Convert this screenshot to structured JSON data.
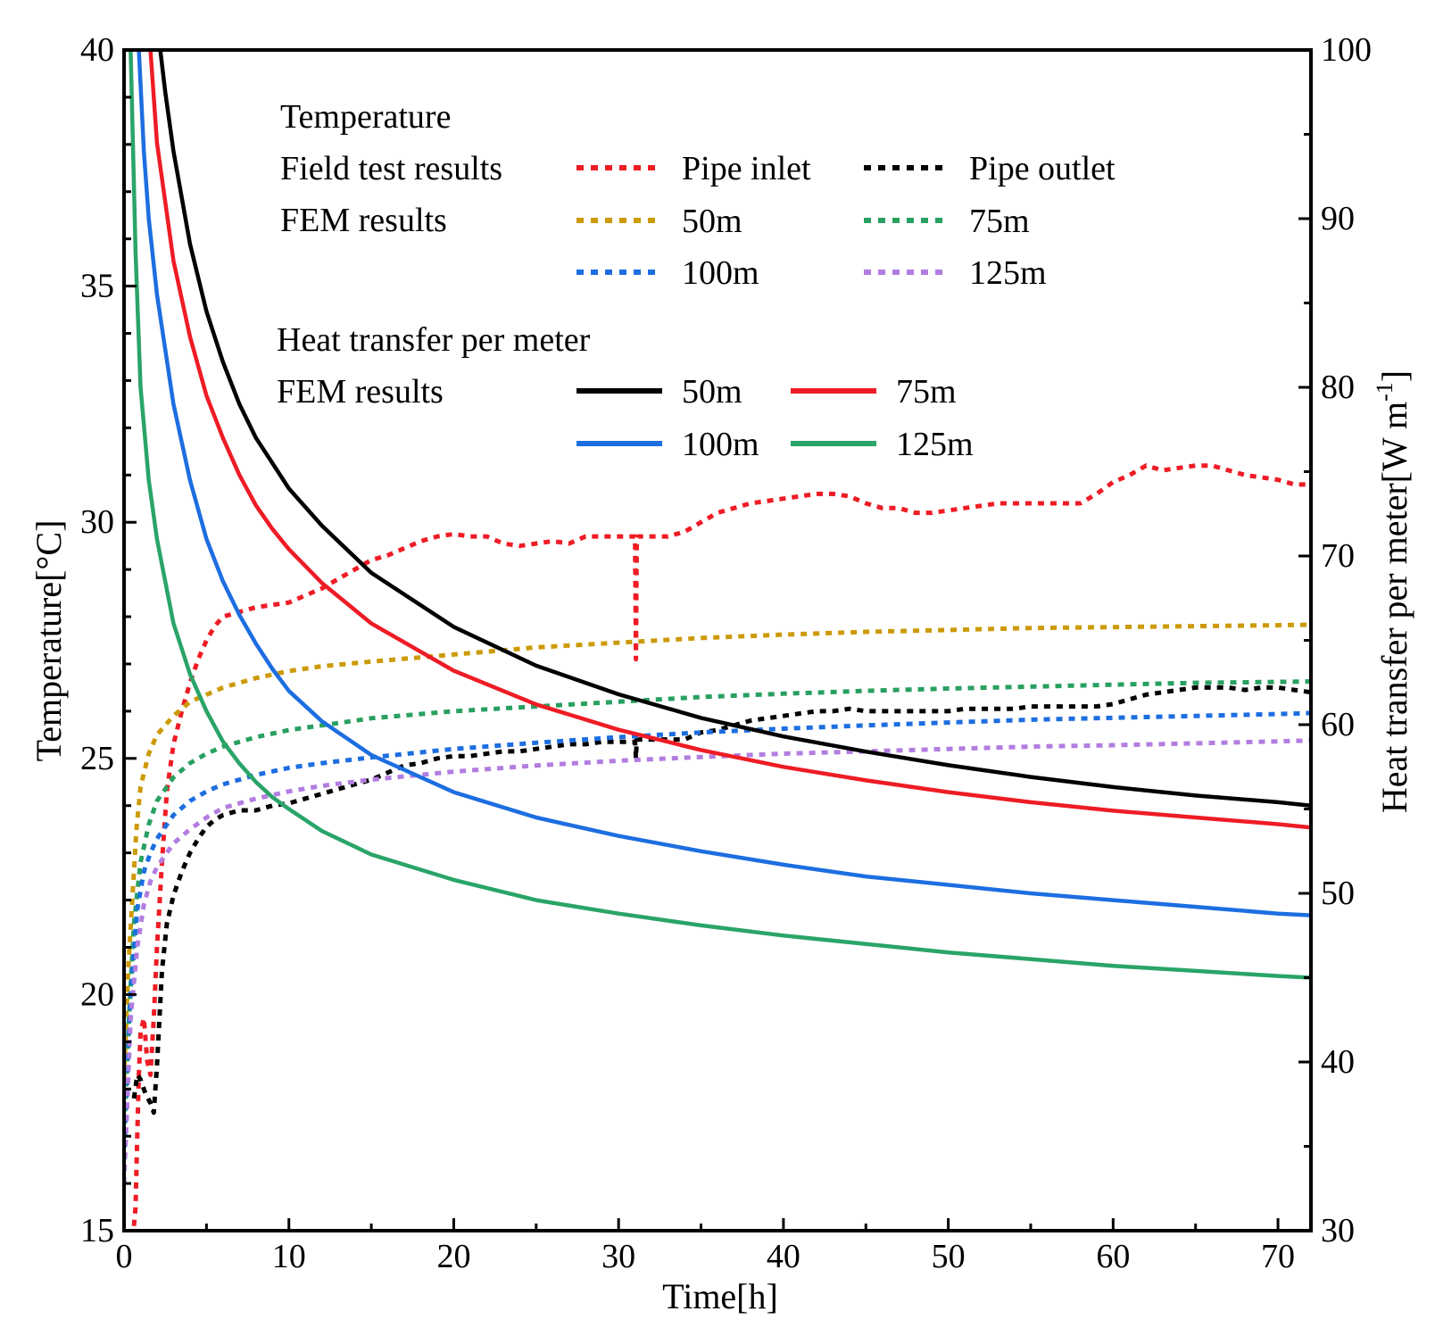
{
  "chart_data": {
    "type": "line",
    "xlabel": "Time[h]",
    "ylabel_left": "Temperature[°C]",
    "ylabel_right_main": "Heat transfer per meter[W m",
    "ylabel_right_sup": "-1",
    "ylabel_right_close": "]",
    "xlim": [
      0,
      72
    ],
    "ylim_left": [
      15,
      40
    ],
    "ylim_right": [
      30,
      100
    ],
    "x_ticks": [
      "0",
      "10",
      "20",
      "30",
      "40",
      "50",
      "60",
      "70"
    ],
    "y_left_ticks": [
      "15",
      "20",
      "25",
      "30",
      "35",
      "40"
    ],
    "y_right_ticks": [
      "30",
      "40",
      "50",
      "60",
      "70",
      "80",
      "90",
      "100"
    ],
    "legend": {
      "temperature_heading": "Temperature",
      "field_label": "Field test results",
      "fem_label_temp": "FEM results",
      "heat_heading": "Heat transfer per meter",
      "fem_label_heat": "FEM results",
      "entries_temp": [
        "Pipe inlet",
        "Pipe outlet",
        "50m",
        "75m",
        "100m",
        "125m"
      ],
      "entries_heat": [
        "50m",
        "75m",
        "100m",
        "125m"
      ]
    },
    "series": [
      {
        "name": "Pipe inlet",
        "axis": "left",
        "style": "dotted",
        "color": "#ee1c25",
        "x": [
          0.6,
          0.7,
          0.8,
          0.9,
          1.0,
          1.2,
          1.4,
          1.6,
          1.8,
          2.0,
          2.3,
          2.6,
          3,
          3.5,
          4,
          4.5,
          5,
          5.5,
          6,
          7,
          8,
          9,
          10,
          11,
          12,
          13,
          14,
          15,
          16,
          17,
          18,
          19,
          20,
          21,
          22,
          23,
          24,
          25,
          26,
          27,
          28,
          29,
          30,
          31,
          31.05,
          31.1,
          31.2,
          32,
          33,
          34,
          35,
          36,
          37,
          38,
          39,
          40,
          41,
          42,
          43,
          44,
          45,
          46,
          47,
          48,
          49,
          50,
          51,
          52,
          53,
          54,
          55,
          56,
          57,
          58,
          59,
          60,
          61,
          62,
          63,
          64,
          65,
          66,
          67,
          68,
          69,
          70,
          71,
          72
        ],
        "y": [
          15.1,
          15.5,
          17.0,
          18.3,
          19.2,
          19.5,
          18.6,
          18.3,
          19.5,
          21.0,
          22.8,
          24.3,
          25.3,
          26.0,
          26.6,
          27.1,
          27.5,
          27.8,
          28.0,
          28.1,
          28.2,
          28.25,
          28.3,
          28.45,
          28.6,
          28.8,
          29.0,
          29.2,
          29.3,
          29.45,
          29.6,
          29.7,
          29.75,
          29.7,
          29.7,
          29.55,
          29.5,
          29.55,
          29.6,
          29.55,
          29.7,
          29.7,
          29.7,
          29.7,
          27.1,
          29.5,
          29.7,
          29.7,
          29.7,
          29.8,
          30.0,
          30.2,
          30.3,
          30.4,
          30.45,
          30.5,
          30.55,
          30.6,
          30.6,
          30.55,
          30.4,
          30.3,
          30.3,
          30.2,
          30.2,
          30.25,
          30.3,
          30.35,
          30.4,
          30.4,
          30.4,
          30.4,
          30.4,
          30.4,
          30.6,
          30.85,
          31.0,
          31.2,
          31.1,
          31.15,
          31.2,
          31.2,
          31.1,
          31.0,
          30.95,
          30.9,
          30.8,
          30.8
        ]
      },
      {
        "name": "Pipe outlet",
        "axis": "left",
        "style": "dotted",
        "color": "#000000",
        "x": [
          0.6,
          0.8,
          1.0,
          1.3,
          1.6,
          1.8,
          2.0,
          2.3,
          2.6,
          3,
          3.5,
          4,
          4.5,
          5,
          5.5,
          6,
          7,
          8,
          9,
          10,
          11,
          12,
          13,
          14,
          15,
          16,
          17,
          18,
          19,
          20,
          21,
          22,
          23,
          24,
          25,
          26,
          27,
          28,
          29,
          30,
          31,
          31.05,
          31.1,
          31.2,
          32,
          33,
          34,
          35,
          36,
          37,
          38,
          39,
          40,
          41,
          42,
          43,
          44,
          45,
          46,
          47,
          48,
          49,
          50,
          51,
          52,
          53,
          54,
          55,
          56,
          57,
          58,
          59,
          60,
          61,
          62,
          63,
          64,
          65,
          66,
          67,
          68,
          69,
          70,
          71,
          72
        ],
        "y": [
          17.8,
          18.3,
          18.2,
          17.9,
          17.7,
          17.5,
          18.5,
          20.5,
          21.5,
          22.1,
          22.6,
          23.0,
          23.3,
          23.55,
          23.7,
          23.8,
          23.9,
          23.9,
          24.0,
          24.05,
          24.15,
          24.25,
          24.35,
          24.45,
          24.55,
          24.7,
          24.85,
          24.9,
          25.0,
          25.05,
          25.05,
          25.1,
          25.15,
          25.15,
          25.2,
          25.25,
          25.3,
          25.3,
          25.35,
          25.35,
          25.35,
          25.0,
          25.4,
          25.4,
          25.4,
          25.4,
          25.4,
          25.55,
          25.6,
          25.7,
          25.8,
          25.85,
          25.9,
          25.95,
          26.0,
          26.0,
          26.05,
          26.0,
          26.0,
          26.0,
          26.0,
          26.0,
          26.0,
          26.05,
          26.05,
          26.05,
          26.05,
          26.1,
          26.1,
          26.1,
          26.1,
          26.1,
          26.15,
          26.25,
          26.35,
          26.4,
          26.45,
          26.5,
          26.5,
          26.5,
          26.45,
          26.5,
          26.5,
          26.45,
          26.4
        ]
      },
      {
        "name": "50m",
        "axis": "left",
        "style": "dotted",
        "color": "#cc9a06",
        "x": [
          0,
          0.25,
          0.5,
          0.75,
          1.0,
          1.5,
          2,
          3,
          4,
          5,
          6,
          8,
          10,
          12,
          15,
          20,
          25,
          30,
          35,
          40,
          45,
          50,
          55,
          60,
          65,
          70,
          72
        ],
        "y": [
          18.2,
          20.5,
          22.0,
          23.5,
          24.4,
          25.1,
          25.5,
          25.9,
          26.2,
          26.35,
          26.5,
          26.7,
          26.85,
          26.95,
          27.05,
          27.2,
          27.35,
          27.45,
          27.55,
          27.62,
          27.68,
          27.72,
          27.76,
          27.78,
          27.8,
          27.82,
          27.83
        ]
      },
      {
        "name": "75m",
        "axis": "left",
        "style": "dotted",
        "color": "#28a060",
        "x": [
          0,
          0.3,
          0.6,
          1.0,
          1.5,
          2,
          3,
          4,
          5,
          6,
          8,
          10,
          12,
          15,
          20,
          25,
          30,
          35,
          40,
          45,
          50,
          55,
          60,
          65,
          70,
          72
        ],
        "y": [
          17.0,
          19.5,
          21.5,
          22.8,
          23.6,
          24.1,
          24.6,
          24.9,
          25.1,
          25.25,
          25.45,
          25.6,
          25.7,
          25.85,
          26.0,
          26.1,
          26.2,
          26.3,
          26.37,
          26.43,
          26.48,
          26.52,
          26.56,
          26.6,
          26.62,
          26.63
        ]
      },
      {
        "name": "100m",
        "axis": "left",
        "style": "dotted",
        "color": "#1d6ee0",
        "x": [
          0,
          0.4,
          0.8,
          1.2,
          1.6,
          2,
          3,
          4,
          5,
          6,
          8,
          10,
          12,
          15,
          20,
          25,
          30,
          35,
          40,
          45,
          50,
          55,
          60,
          65,
          70,
          72
        ],
        "y": [
          16.5,
          20.0,
          21.8,
          22.6,
          23.0,
          23.3,
          23.8,
          24.1,
          24.3,
          24.45,
          24.65,
          24.8,
          24.9,
          25.02,
          25.2,
          25.33,
          25.45,
          25.55,
          25.63,
          25.7,
          25.76,
          25.82,
          25.86,
          25.9,
          25.94,
          25.96
        ]
      },
      {
        "name": "125m",
        "axis": "left",
        "style": "dotted",
        "color": "#b27de0",
        "x": [
          0,
          0.4,
          0.8,
          1.2,
          1.6,
          2,
          3,
          4,
          5,
          6,
          8,
          10,
          12,
          15,
          20,
          25,
          30,
          35,
          40,
          45,
          50,
          55,
          60,
          65,
          70,
          72
        ],
        "y": [
          16.0,
          19.5,
          21.0,
          21.9,
          22.4,
          22.7,
          23.2,
          23.5,
          23.75,
          23.95,
          24.15,
          24.3,
          24.42,
          24.55,
          24.72,
          24.85,
          24.95,
          25.03,
          25.1,
          25.15,
          25.2,
          25.25,
          25.28,
          25.32,
          25.36,
          25.38
        ]
      },
      {
        "name": "50m",
        "axis": "right",
        "style": "solid",
        "color": "#000000",
        "x": [
          2.2,
          2.5,
          3,
          4,
          5,
          6,
          7,
          8,
          9,
          10,
          12,
          15,
          20,
          25,
          30,
          35,
          40,
          45,
          50,
          55,
          60,
          65,
          70,
          72
        ],
        "y": [
          100,
          97.5,
          94.0,
          88.5,
          84.5,
          81.5,
          79.0,
          77.0,
          75.5,
          74.0,
          71.8,
          69.0,
          65.8,
          63.5,
          61.8,
          60.4,
          59.3,
          58.4,
          57.6,
          56.9,
          56.3,
          55.8,
          55.4,
          55.2
        ]
      },
      {
        "name": "75m",
        "axis": "right",
        "style": "solid",
        "color": "#ee1c25",
        "x": [
          1.6,
          2,
          3,
          4,
          5,
          6,
          7,
          8,
          9,
          10,
          12,
          15,
          20,
          25,
          30,
          35,
          40,
          45,
          50,
          55,
          60,
          65,
          70,
          72
        ],
        "y": [
          100,
          94.5,
          87.5,
          83.0,
          79.5,
          77.0,
          74.8,
          73.0,
          71.6,
          70.4,
          68.4,
          66.0,
          63.2,
          61.2,
          59.7,
          58.5,
          57.5,
          56.7,
          56.0,
          55.4,
          54.9,
          54.5,
          54.1,
          53.9
        ]
      },
      {
        "name": "100m",
        "axis": "right",
        "style": "solid",
        "color": "#1d6ee0",
        "x": [
          0.9,
          1.2,
          1.5,
          2,
          3,
          4,
          5,
          6,
          7,
          8,
          9,
          10,
          12,
          15,
          20,
          25,
          30,
          35,
          40,
          45,
          50,
          55,
          60,
          65,
          70,
          72
        ],
        "y": [
          100,
          94.0,
          90.0,
          85.5,
          79.0,
          74.5,
          71.0,
          68.5,
          66.5,
          64.8,
          63.3,
          62.0,
          60.2,
          58.2,
          56.0,
          54.5,
          53.4,
          52.5,
          51.7,
          51.0,
          50.5,
          50.0,
          49.6,
          49.2,
          48.8,
          48.7
        ]
      },
      {
        "name": "125m",
        "axis": "right",
        "style": "solid",
        "color": "#2aa468",
        "x": [
          0.4,
          0.7,
          1.0,
          1.5,
          2,
          3,
          4,
          5,
          6,
          7,
          8,
          9,
          10,
          12,
          15,
          20,
          25,
          30,
          35,
          40,
          45,
          50,
          55,
          60,
          65,
          70,
          72
        ],
        "y": [
          100,
          88.0,
          80.0,
          74.5,
          71.0,
          66.0,
          63.0,
          60.8,
          59.0,
          57.7,
          56.6,
          55.7,
          55.0,
          53.7,
          52.3,
          50.8,
          49.6,
          48.8,
          48.1,
          47.5,
          47.0,
          46.5,
          46.1,
          45.7,
          45.4,
          45.1,
          45.0
        ]
      }
    ]
  }
}
